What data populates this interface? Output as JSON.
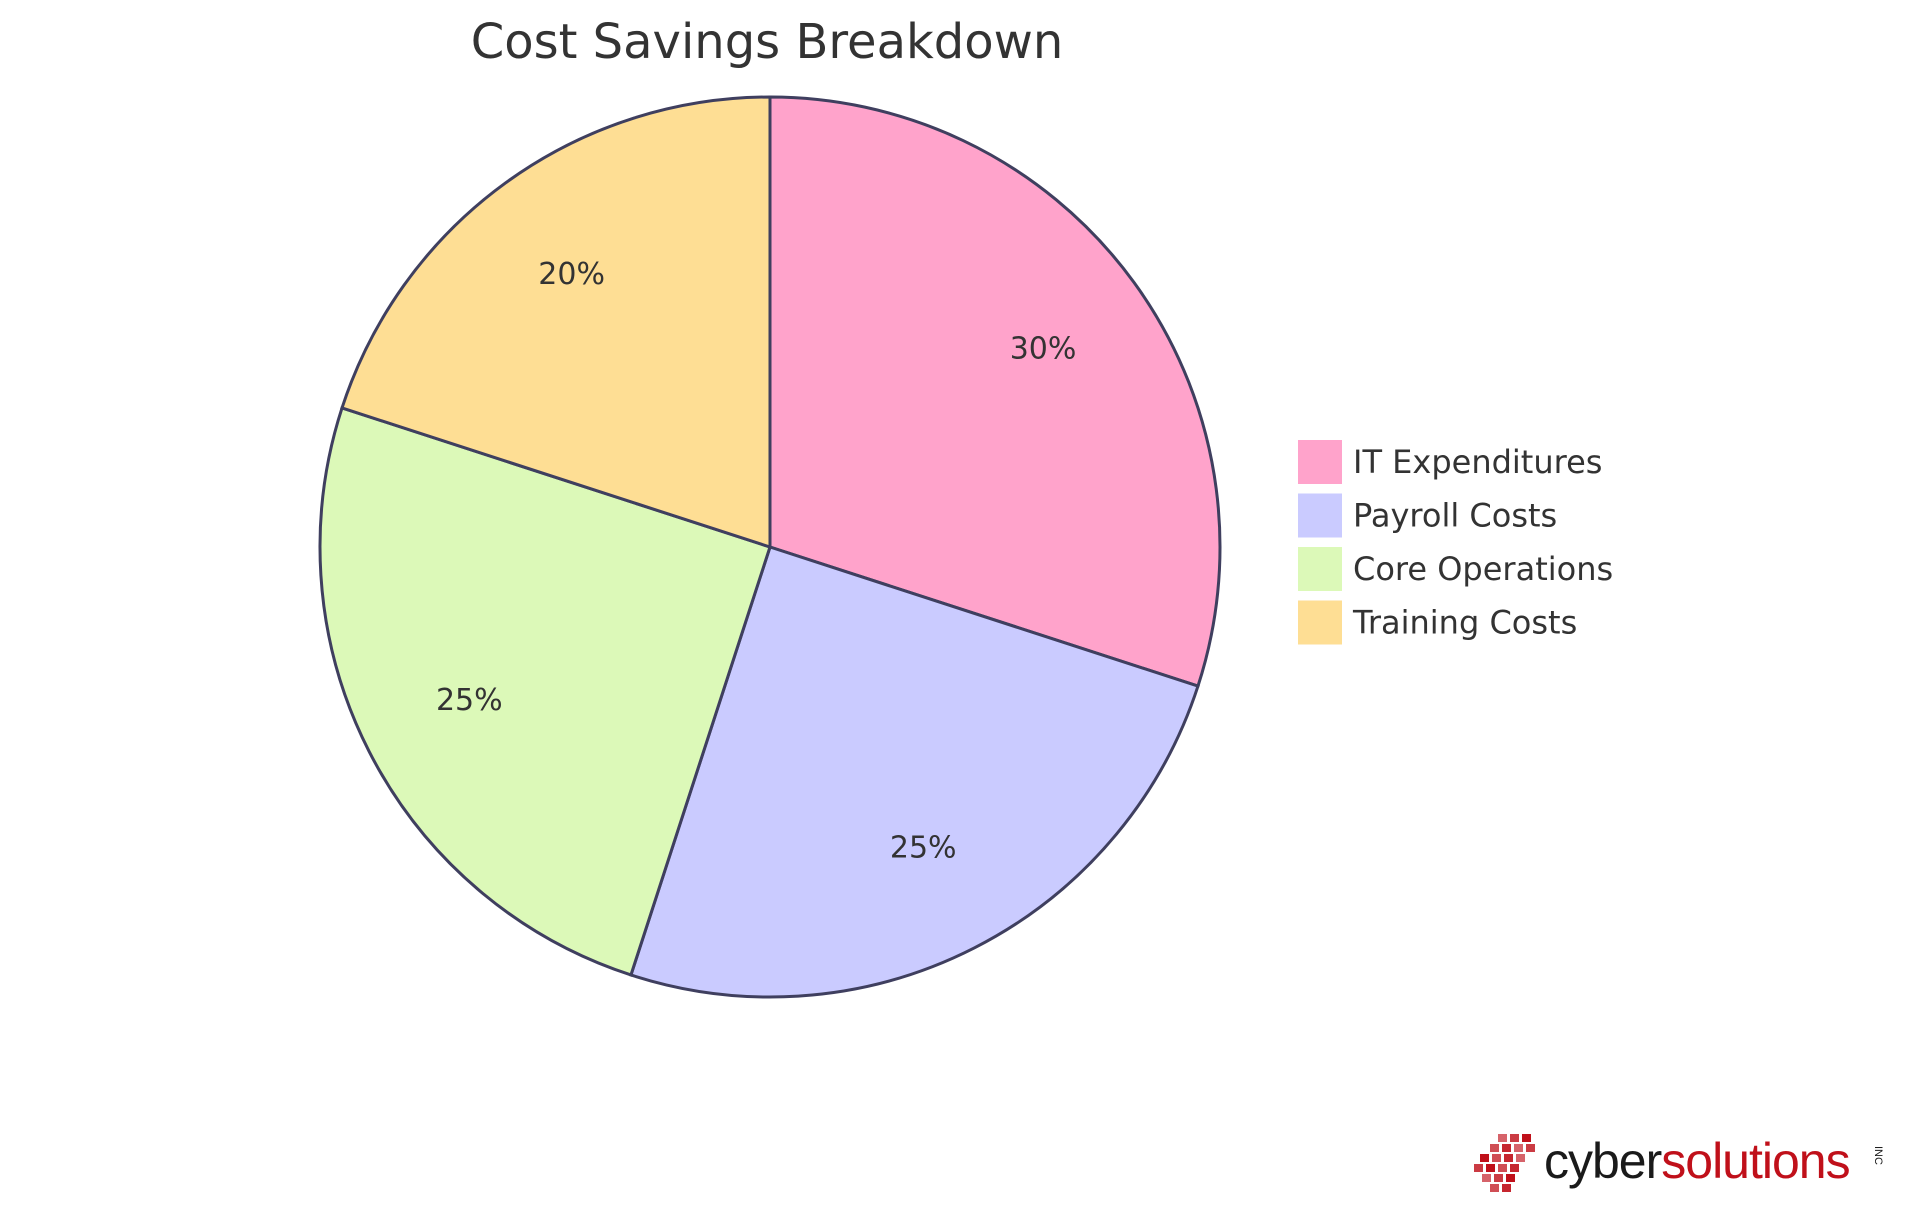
{
  "chart_data": {
    "type": "pie",
    "title": "Cost Savings Breakdown",
    "slices": [
      {
        "label": "IT Expenditures",
        "value": 30,
        "display": "30%",
        "color": "#ffa3cb"
      },
      {
        "label": "Payroll Costs",
        "value": 25,
        "display": "25%",
        "color": "#cacbff"
      },
      {
        "label": "Core Operations",
        "value": 25,
        "display": "25%",
        "color": "#dcf9b8"
      },
      {
        "label": "Training Costs",
        "value": 20,
        "display": "20%",
        "color": "#fede94"
      }
    ],
    "legend_placement": "right",
    "start_angle": "12 o'clock",
    "direction": "clockwise",
    "outline_color": "#3f3f5f"
  },
  "logo": {
    "cyber": "cyber",
    "solutions": "solutions",
    "inc": "INC",
    "brand_color": "#c0101a",
    "text_color": "#1a1a1a"
  }
}
